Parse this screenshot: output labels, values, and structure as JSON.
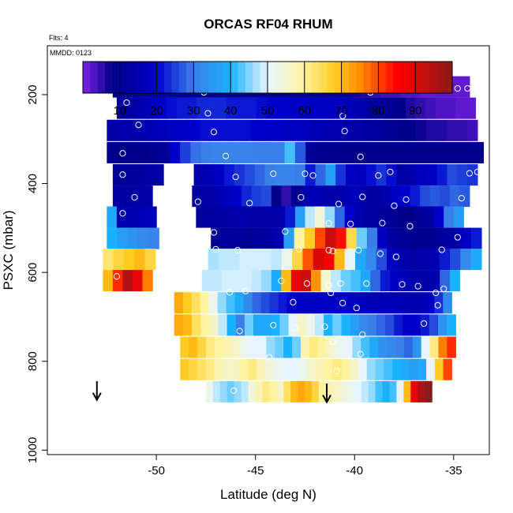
{
  "chart_data": {
    "type": "heatmap",
    "title": "ORCAS RF04 RHUM",
    "subtitle_flts": "Flts: 4",
    "subtitle_mmdd": "MMDD: 0123",
    "xlabel": "Latitude (deg N)",
    "ylabel": "PSXC (mbar)",
    "xlim": [
      -55.5,
      -33.2
    ],
    "ylim": [
      1010,
      90
    ],
    "y_reversed": true,
    "grid": false,
    "legend": "colorbar-top",
    "x_ticks": [
      -50,
      -45,
      -40,
      -35
    ],
    "x_tick_labels": [
      "-50",
      "-45",
      "-40",
      "-35"
    ],
    "y_ticks": [
      200,
      400,
      600,
      800,
      1000
    ],
    "y_tick_labels": [
      "200",
      "400",
      "600",
      "800",
      "1000"
    ],
    "colorbar": {
      "range": [
        0,
        100
      ],
      "ticks": [
        10,
        20,
        30,
        40,
        50,
        60,
        70,
        80,
        90
      ],
      "tick_labels": [
        "10",
        "20",
        "30",
        "40",
        "50",
        "60",
        "70",
        "80",
        "90"
      ],
      "stops": [
        [
          0,
          "#7f22e6"
        ],
        [
          8,
          "#00008b"
        ],
        [
          20,
          "#0000cd"
        ],
        [
          30,
          "#3a7fe8"
        ],
        [
          40,
          "#1ab2ff"
        ],
        [
          50,
          "#e6f5ff"
        ],
        [
          60,
          "#fff3a0"
        ],
        [
          68,
          "#ffcc22"
        ],
        [
          75,
          "#ff8c00"
        ],
        [
          85,
          "#ff0000"
        ],
        [
          100,
          "#8b1a1a"
        ]
      ]
    },
    "rows": [
      {
        "p": 182,
        "x0": -52.2,
        "x1": -34.2,
        "v": [
          9,
          10,
          11,
          10,
          10,
          11,
          10,
          10,
          9,
          9,
          9,
          9,
          9,
          10,
          9,
          8,
          8,
          8,
          8,
          9,
          10,
          10,
          9,
          8,
          7,
          6,
          5,
          4,
          4,
          3,
          3,
          2,
          2,
          2,
          2,
          2
        ]
      },
      {
        "p": 230,
        "x0": -52.0,
        "x1": -33.9,
        "v": [
          11,
          13,
          15,
          17,
          19,
          21,
          22,
          22,
          23,
          23,
          23,
          22,
          22,
          22,
          21,
          20,
          20,
          19,
          19,
          18,
          18,
          18,
          17,
          16,
          14,
          12,
          11,
          9,
          8,
          6,
          5,
          4,
          3,
          3,
          2,
          2
        ]
      },
      {
        "p": 280,
        "x0": -52.5,
        "x1": -33.8,
        "v": [
          13,
          14,
          14,
          15,
          16,
          17,
          18,
          19,
          20,
          21,
          21,
          21,
          21,
          21,
          20,
          20,
          19,
          18,
          18,
          17,
          16,
          15,
          15,
          14,
          13,
          12,
          11,
          10,
          9,
          8,
          7,
          6,
          6,
          5,
          5,
          4
        ]
      },
      {
        "p": 330,
        "x0": -52.5,
        "x1": -33.5,
        "v": [
          8,
          8,
          8,
          8,
          9,
          10,
          20,
          25,
          29,
          30,
          31,
          31,
          31,
          31,
          30,
          30,
          30,
          42,
          27,
          10,
          9,
          9,
          8,
          8,
          8,
          8,
          8,
          8,
          8,
          8,
          8,
          8,
          8,
          8,
          8,
          8
        ]
      },
      {
        "p": 380,
        "x0": -52.2,
        "x1": -33.8,
        "v": [
          10,
          11,
          12,
          13,
          13,
          null,
          null,
          null,
          14,
          16,
          18,
          22,
          24,
          26,
          28,
          30,
          31,
          31,
          30,
          22,
          28,
          36,
          24,
          18,
          17,
          21,
          24,
          21,
          13,
          14,
          17,
          18,
          22,
          26,
          25,
          24
        ]
      },
      {
        "p": 428,
        "x0": -52.2,
        "x1": -34.2,
        "v": [
          12,
          12,
          13,
          13,
          null,
          null,
          null,
          null,
          12,
          13,
          14,
          17,
          20,
          23,
          25,
          26,
          8,
          5,
          9,
          14,
          16,
          14,
          13,
          15,
          17,
          13,
          12,
          14,
          18,
          20,
          22,
          26,
          27,
          26,
          28,
          27
        ]
      },
      {
        "p": 475,
        "x0": -52.5,
        "x1": -34.5,
        "v": [
          38,
          14,
          15,
          16,
          17,
          null,
          null,
          null,
          null,
          11,
          12,
          12,
          13,
          14,
          13,
          13,
          13,
          14,
          22,
          36,
          48,
          54,
          46,
          28,
          20,
          14,
          12,
          11,
          10,
          9,
          8,
          10,
          12,
          20,
          30,
          35
        ]
      },
      {
        "p": 523,
        "x0": -52.5,
        "x1": -33.6,
        "v": [
          40,
          36,
          34,
          32,
          31,
          null,
          null,
          null,
          null,
          null,
          10,
          11,
          11,
          10,
          11,
          12,
          14,
          36,
          60,
          68,
          80,
          92,
          84,
          65,
          44,
          30,
          18,
          12,
          10,
          9,
          9,
          9,
          11,
          13,
          18,
          22
        ]
      },
      {
        "p": 570,
        "x0": -52.7,
        "x1": -33.6,
        "v": [
          63,
          66,
          68,
          70,
          66,
          null,
          null,
          null,
          null,
          null,
          47,
          48,
          48,
          49,
          49,
          49,
          48,
          52,
          66,
          79,
          90,
          86,
          70,
          50,
          38,
          32,
          26,
          18,
          14,
          13,
          14,
          15,
          22,
          26,
          32,
          38
        ]
      },
      {
        "p": 618,
        "x0": -52.7,
        "x1": -34.7,
        "v": [
          70,
          82,
          95,
          88,
          76,
          null,
          null,
          null,
          null,
          null,
          48,
          48,
          49,
          49,
          49,
          48,
          46,
          38,
          70,
          88,
          92,
          74,
          55,
          48,
          44,
          42,
          38,
          28,
          22,
          18,
          16,
          14,
          13,
          14,
          28,
          40
        ]
      },
      {
        "p": 668,
        "x0": -49.1,
        "x1": -35.1,
        "v": [
          72,
          68,
          64,
          60,
          52,
          46,
          42,
          38,
          32,
          28,
          26,
          24,
          22,
          20,
          19,
          18,
          18,
          18,
          19,
          20,
          18,
          17,
          16,
          16,
          16,
          16,
          16,
          15,
          16,
          18,
          24,
          32
        ]
      },
      {
        "p": 718,
        "x0": -49.1,
        "x1": -34.9,
        "v": [
          72,
          70,
          64,
          60,
          56,
          48,
          40,
          30,
          44,
          38,
          38,
          40,
          44,
          50,
          56,
          52,
          48,
          40,
          44,
          40,
          36,
          32,
          30,
          28,
          26,
          22,
          20,
          20,
          22,
          26,
          34,
          40
        ]
      },
      {
        "p": 768,
        "x0": -48.8,
        "x1": -34.9,
        "v": [
          68,
          70,
          66,
          62,
          60,
          58,
          56,
          52,
          50,
          50,
          46,
          44,
          40,
          44,
          58,
          62,
          60,
          56,
          52,
          50,
          46,
          42,
          38,
          34,
          32,
          30,
          28,
          34,
          50,
          62,
          76,
          82
        ]
      },
      {
        "p": 818,
        "x0": -48.8,
        "x1": -35.1,
        "v": [
          68,
          66,
          64,
          62,
          58,
          56,
          56,
          60,
          62,
          58,
          54,
          52,
          50,
          50,
          52,
          56,
          58,
          60,
          62,
          60,
          56,
          50,
          46,
          44,
          42,
          40,
          38,
          36,
          38,
          50,
          68,
          80
        ]
      },
      {
        "p": 868,
        "x0": -47.5,
        "x1": -36.1,
        "v": [
          52,
          48,
          46,
          44,
          46,
          48,
          54,
          58,
          62,
          60,
          56,
          64,
          70,
          72,
          70,
          66,
          60,
          58,
          56,
          54,
          52,
          50,
          48,
          46,
          42,
          40,
          42,
          50,
          70,
          88,
          96,
          100
        ]
      }
    ],
    "points": [
      [
        -51.2,
        186
      ],
      [
        -50.7,
        182
      ],
      [
        -50.3,
        182
      ],
      [
        -49.9,
        182
      ],
      [
        -49.5,
        182
      ],
      [
        -49.1,
        182
      ],
      [
        -48.7,
        182
      ],
      [
        -48.3,
        182
      ],
      [
        -47.6,
        195
      ],
      [
        -39.2,
        195
      ],
      [
        -38.9,
        182
      ],
      [
        -38.3,
        182
      ],
      [
        -37.7,
        182
      ],
      [
        -37.1,
        182
      ],
      [
        -36.6,
        182
      ],
      [
        -36.0,
        182
      ],
      [
        -35.4,
        182
      ],
      [
        -34.8,
        186
      ],
      [
        -34.3,
        186
      ],
      [
        -51.5,
        218
      ],
      [
        -47.4,
        242
      ],
      [
        -40.6,
        248
      ],
      [
        -50.9,
        268
      ],
      [
        -47.1,
        284
      ],
      [
        -40.5,
        282
      ],
      [
        -51.7,
        332
      ],
      [
        -46.5,
        338
      ],
      [
        -39.7,
        340
      ],
      [
        -51.7,
        380
      ],
      [
        -46.0,
        385
      ],
      [
        -44.1,
        378
      ],
      [
        -42.5,
        378
      ],
      [
        -42.1,
        382
      ],
      [
        -38.8,
        382
      ],
      [
        -38.2,
        374
      ],
      [
        -34.2,
        377
      ],
      [
        -33.8,
        374
      ],
      [
        -51.1,
        431
      ],
      [
        -48.6,
        436
      ],
      [
        -47.9,
        441
      ],
      [
        -45.3,
        444
      ],
      [
        -42.7,
        431
      ],
      [
        -40.8,
        446
      ],
      [
        -39.6,
        430
      ],
      [
        -38.0,
        450
      ],
      [
        -37.4,
        436
      ],
      [
        -34.6,
        433
      ],
      [
        -51.7,
        467
      ],
      [
        -47.1,
        510
      ],
      [
        -43.5,
        508
      ],
      [
        -41.3,
        490
      ],
      [
        -40.2,
        491
      ],
      [
        -38.6,
        489
      ],
      [
        -37.2,
        496
      ],
      [
        -33.9,
        490
      ],
      [
        -34.8,
        521
      ],
      [
        -47.0,
        548
      ],
      [
        -45.9,
        550
      ],
      [
        -42.8,
        548
      ],
      [
        -41.3,
        550
      ],
      [
        -41.1,
        552
      ],
      [
        -39.8,
        550
      ],
      [
        -38.7,
        558
      ],
      [
        -37.9,
        565
      ],
      [
        -35.6,
        549
      ],
      [
        -52.0,
        609
      ],
      [
        -43.7,
        619
      ],
      [
        -42.4,
        625
      ],
      [
        -41.3,
        629
      ],
      [
        -40.7,
        625
      ],
      [
        -39.4,
        625
      ],
      [
        -37.6,
        627
      ],
      [
        -36.8,
        631
      ],
      [
        -35.9,
        646
      ],
      [
        -35.5,
        637
      ],
      [
        -46.3,
        645
      ],
      [
        -45.5,
        642
      ],
      [
        -41.2,
        646
      ],
      [
        -43.1,
        667
      ],
      [
        -40.6,
        669
      ],
      [
        -39.9,
        680
      ],
      [
        -35.8,
        674
      ],
      [
        -36.5,
        715
      ],
      [
        -44.1,
        719
      ],
      [
        -43.0,
        725
      ],
      [
        -41.5,
        722
      ],
      [
        -39.6,
        740
      ],
      [
        -41.1,
        756
      ],
      [
        -45.8,
        732
      ],
      [
        -39.7,
        784
      ],
      [
        -44.3,
        791
      ],
      [
        -40.9,
        822
      ],
      [
        -35.7,
        851
      ],
      [
        -46.1,
        866
      ]
    ],
    "arrows": [
      {
        "x": -53.0,
        "p": 865
      },
      {
        "x": -41.4,
        "p": 870
      }
    ]
  }
}
